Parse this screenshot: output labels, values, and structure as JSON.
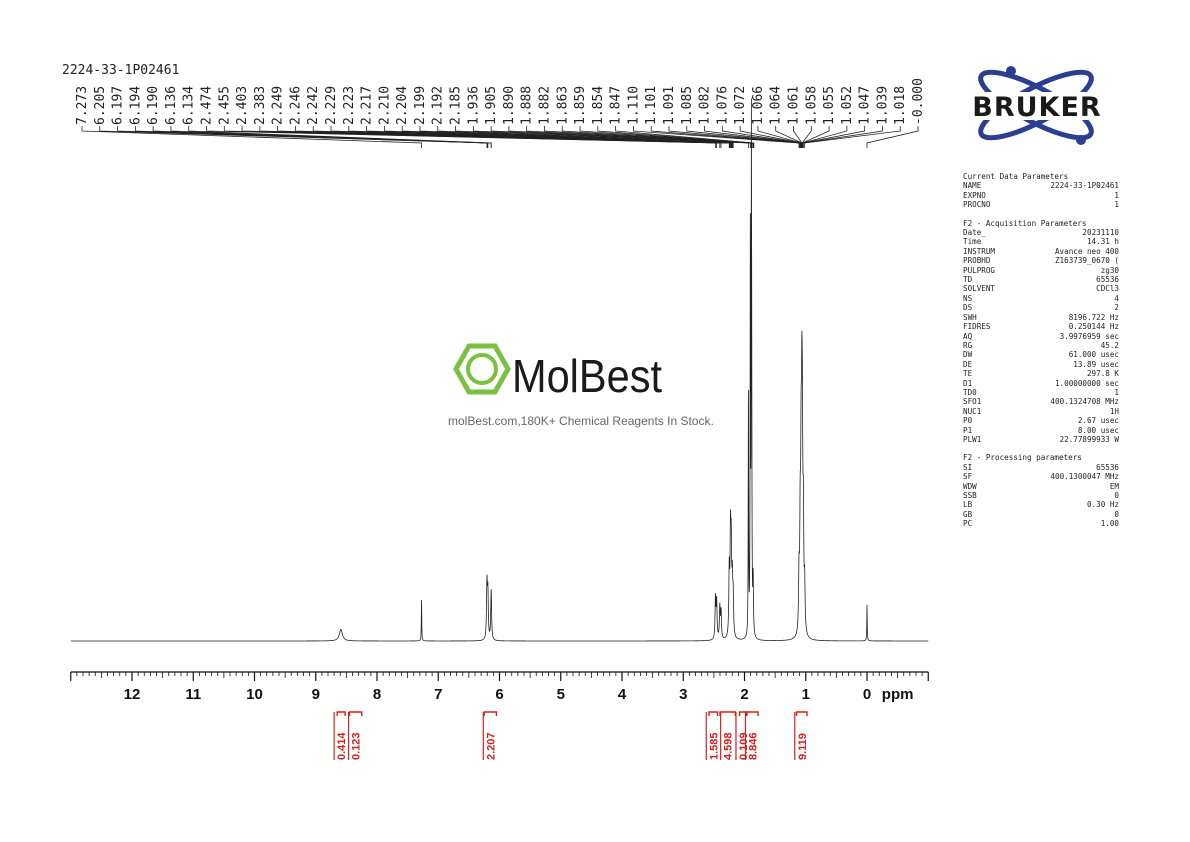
{
  "sample_name": "2224-33-1P02461",
  "logo": {
    "brand": "BRUKER",
    "color": "#2a3f8f",
    "accent": "#1a1a1a"
  },
  "watermark": {
    "brand": "MolBest",
    "tagline": "molBest.com,180K+ Chemical Reagents In Stock.",
    "color": "#7ac142"
  },
  "parameters": {
    "header": "Current Data Parameters",
    "current": [
      {
        "k": "NAME",
        "v": "2224-33-1P02461"
      },
      {
        "k": "EXPNO",
        "v": "1"
      },
      {
        "k": "PROCNO",
        "v": "1"
      }
    ],
    "acq_title": "F2 - Acquisition Parameters",
    "acquisition": [
      {
        "k": "Date_",
        "v": "20231110"
      },
      {
        "k": "Time",
        "v": "14.31 h"
      },
      {
        "k": "INSTRUM",
        "v": "Avance neo 400"
      },
      {
        "k": "PROBHD",
        "v": "Z163739_0670 ("
      },
      {
        "k": "PULPROG",
        "v": "zg30"
      },
      {
        "k": "TD",
        "v": "65536"
      },
      {
        "k": "SOLVENT",
        "v": "CDCl3"
      },
      {
        "k": "NS",
        "v": "4"
      },
      {
        "k": "DS",
        "v": "2"
      },
      {
        "k": "SWH",
        "v": "8196.722 Hz"
      },
      {
        "k": "FIDRES",
        "v": "0.250144 Hz"
      },
      {
        "k": "AQ",
        "v": "3.9976959 sec"
      },
      {
        "k": "RG",
        "v": "45.2"
      },
      {
        "k": "DW",
        "v": "61.000 usec"
      },
      {
        "k": "DE",
        "v": "13.89 usec"
      },
      {
        "k": "TE",
        "v": "297.8 K"
      },
      {
        "k": "D1",
        "v": "1.00000000 sec"
      },
      {
        "k": "TD0",
        "v": "1"
      },
      {
        "k": "SFO1",
        "v": "400.1324708 MHz"
      },
      {
        "k": "NUC1",
        "v": "1H"
      },
      {
        "k": "P0",
        "v": "2.67 usec"
      },
      {
        "k": "P1",
        "v": "8.00 usec"
      },
      {
        "k": "PLW1",
        "v": "22.77899933 W"
      }
    ],
    "proc_title": "F2 - Processing parameters",
    "processing": [
      {
        "k": "SI",
        "v": "65536"
      },
      {
        "k": "SF",
        "v": "400.1300047 MHz"
      },
      {
        "k": "WDW",
        "v": "EM"
      },
      {
        "k": "SSB",
        "v": "0"
      },
      {
        "k": "LB",
        "v": "0.30 Hz"
      },
      {
        "k": "GB",
        "v": "0"
      },
      {
        "k": "PC",
        "v": "1.00"
      }
    ]
  },
  "chart_data": {
    "type": "line",
    "xlabel": "ppm",
    "xlim": [
      13.0,
      -1.0
    ],
    "reversed_x": true,
    "x_ticks": [
      12,
      11,
      10,
      9,
      8,
      7,
      6,
      5,
      4,
      3,
      2,
      1,
      0
    ],
    "peak_labels": [
      "7.273",
      "6.205",
      "6.197",
      "6.194",
      "6.190",
      "6.136",
      "6.134",
      "2.474",
      "2.455",
      "2.403",
      "2.383",
      "2.249",
      "2.246",
      "2.242",
      "2.229",
      "2.223",
      "2.217",
      "2.210",
      "2.204",
      "2.199",
      "2.192",
      "2.185",
      "1.936",
      "1.905",
      "1.890",
      "1.888",
      "1.882",
      "1.863",
      "1.859",
      "1.854",
      "1.847",
      "1.110",
      "1.101",
      "1.091",
      "1.085",
      "1.082",
      "1.076",
      "1.072",
      "1.066",
      "1.064",
      "1.061",
      "1.058",
      "1.055",
      "1.052",
      "1.047",
      "1.039",
      "1.018",
      "-0.000"
    ],
    "peak_label_anchor_ppm": [
      7.273,
      6.205,
      6.197,
      6.194,
      6.19,
      6.136,
      6.134,
      2.474,
      2.455,
      2.403,
      2.383,
      2.249,
      2.246,
      2.242,
      2.229,
      2.223,
      2.217,
      2.21,
      2.204,
      2.199,
      2.192,
      2.185,
      1.936,
      1.905,
      1.89,
      1.888,
      1.882,
      1.863,
      1.859,
      1.854,
      1.847,
      1.11,
      1.101,
      1.091,
      1.085,
      1.082,
      1.076,
      1.072,
      1.066,
      1.064,
      1.061,
      1.058,
      1.055,
      1.052,
      1.047,
      1.039,
      1.018,
      0.0
    ],
    "peaks": [
      {
        "ppm": 8.59,
        "h": 0.025,
        "w": 0.03
      },
      {
        "ppm": 7.273,
        "h": 0.09,
        "w": 0.004
      },
      {
        "ppm": 6.205,
        "h": 0.12,
        "w": 0.008
      },
      {
        "ppm": 6.19,
        "h": 0.1,
        "w": 0.008
      },
      {
        "ppm": 6.136,
        "h": 0.11,
        "w": 0.008
      },
      {
        "ppm": 2.474,
        "h": 0.09,
        "w": 0.008
      },
      {
        "ppm": 2.455,
        "h": 0.08,
        "w": 0.008
      },
      {
        "ppm": 2.403,
        "h": 0.07,
        "w": 0.008
      },
      {
        "ppm": 2.383,
        "h": 0.06,
        "w": 0.008
      },
      {
        "ppm": 2.249,
        "h": 0.14,
        "w": 0.008
      },
      {
        "ppm": 2.229,
        "h": 0.2,
        "w": 0.008
      },
      {
        "ppm": 2.217,
        "h": 0.17,
        "w": 0.008
      },
      {
        "ppm": 2.199,
        "h": 0.11,
        "w": 0.008
      },
      {
        "ppm": 2.185,
        "h": 0.08,
        "w": 0.008
      },
      {
        "ppm": 1.936,
        "h": 0.55,
        "w": 0.004
      },
      {
        "ppm": 1.905,
        "h": 0.85,
        "w": 0.004
      },
      {
        "ppm": 1.888,
        "h": 1.0,
        "w": 0.004
      },
      {
        "ppm": 1.882,
        "h": 0.4,
        "w": 0.004
      },
      {
        "ppm": 1.859,
        "h": 0.12,
        "w": 0.006
      },
      {
        "ppm": 1.11,
        "h": 0.12,
        "w": 0.008
      },
      {
        "ppm": 1.091,
        "h": 0.22,
        "w": 0.008
      },
      {
        "ppm": 1.076,
        "h": 0.32,
        "w": 0.008
      },
      {
        "ppm": 1.064,
        "h": 0.38,
        "w": 0.008
      },
      {
        "ppm": 1.055,
        "h": 0.33,
        "w": 0.008
      },
      {
        "ppm": 1.039,
        "h": 0.22,
        "w": 0.008
      },
      {
        "ppm": 1.018,
        "h": 0.1,
        "w": 0.008
      },
      {
        "ppm": 0.0,
        "h": 0.078,
        "w": 0.004
      }
    ],
    "integrals": [
      {
        "value": "0.414",
        "from": 8.65,
        "to": 8.52
      },
      {
        "value": "0.123",
        "from": 8.45,
        "to": 8.25
      },
      {
        "value": "2.207",
        "from": 6.25,
        "to": 6.05
      },
      {
        "value": "1.585",
        "from": 2.58,
        "to": 2.44
      },
      {
        "value": "4.598",
        "from": 2.4,
        "to": 2.15
      },
      {
        "value": "0.109",
        "from": 2.08,
        "to": 1.97
      },
      {
        "value": "8.846",
        "from": 1.96,
        "to": 1.78
      },
      {
        "value": "9.119",
        "from": 1.15,
        "to": 0.98
      }
    ],
    "integral_color": "#d42020",
    "trace_color": "#222222"
  }
}
